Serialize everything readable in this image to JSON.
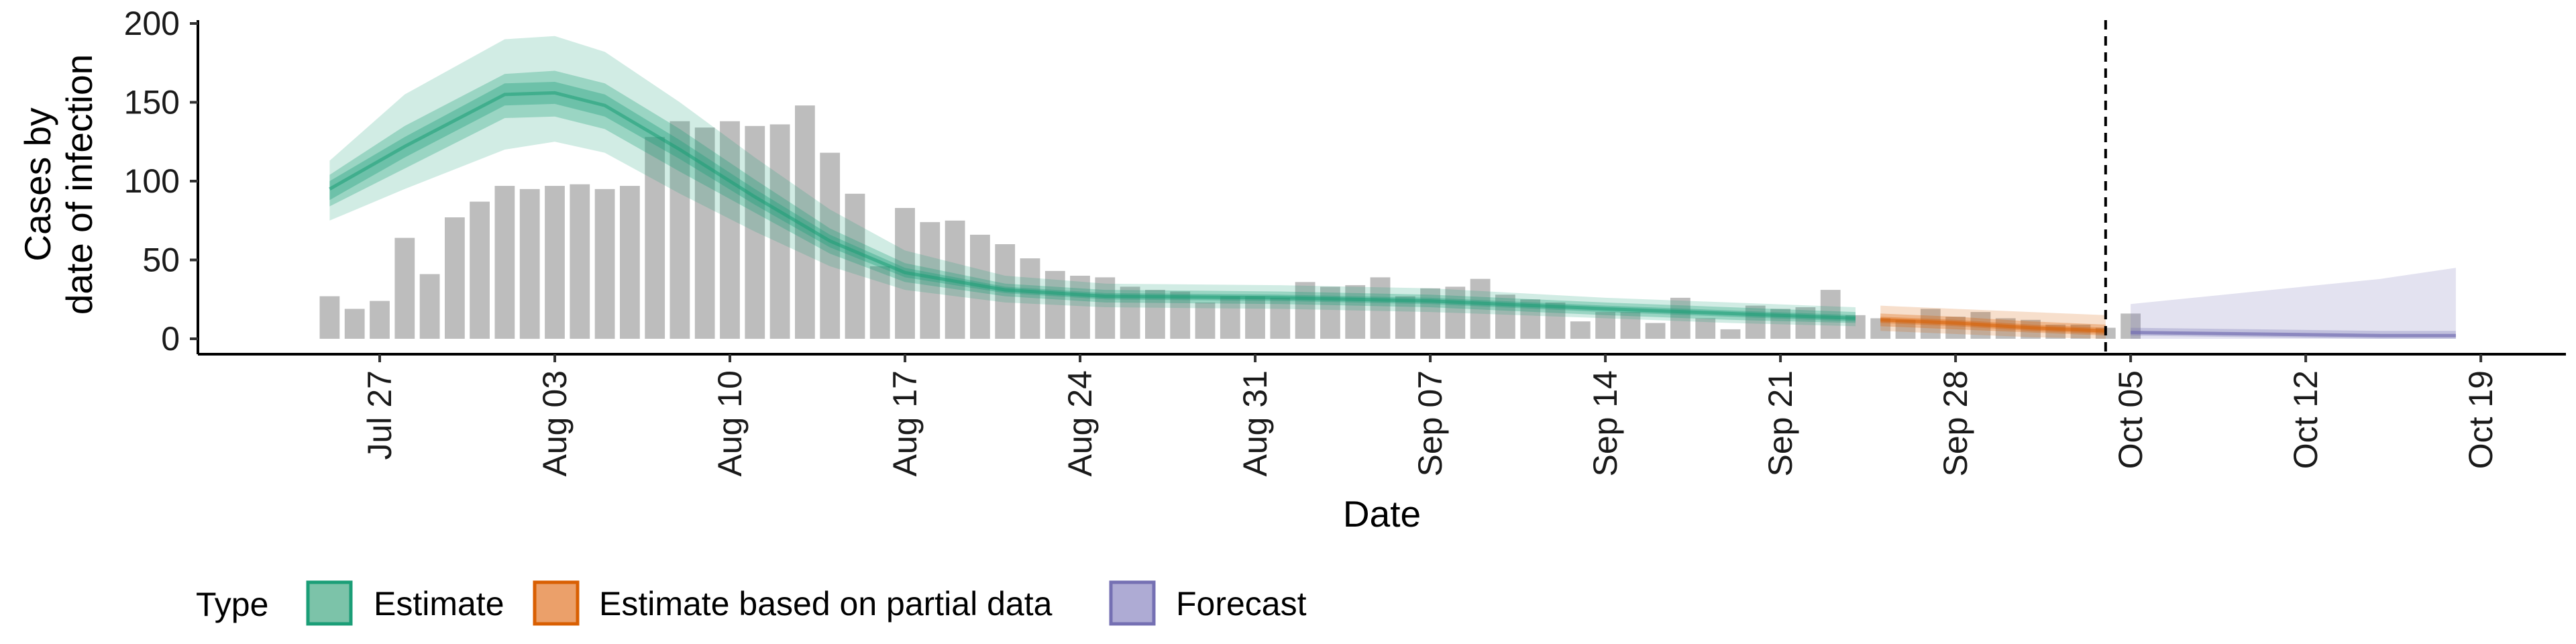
{
  "chart_data": {
    "type": "bar",
    "xlabel": "Date",
    "ylabel_lines": [
      "Cases by",
      "date of infection"
    ],
    "ylim": [
      0,
      200
    ],
    "y_ticks": [
      0,
      50,
      100,
      150,
      200
    ],
    "x_range": [
      "2020-07-20",
      "2020-10-22"
    ],
    "x_ticks": [
      {
        "date": "2020-07-27",
        "label": "Jul 27"
      },
      {
        "date": "2020-08-03",
        "label": "Aug 03"
      },
      {
        "date": "2020-08-10",
        "label": "Aug 10"
      },
      {
        "date": "2020-08-17",
        "label": "Aug 17"
      },
      {
        "date": "2020-08-24",
        "label": "Aug 24"
      },
      {
        "date": "2020-08-31",
        "label": "Aug 31"
      },
      {
        "date": "2020-09-07",
        "label": "Sep 07"
      },
      {
        "date": "2020-09-14",
        "label": "Sep 14"
      },
      {
        "date": "2020-09-21",
        "label": "Sep 21"
      },
      {
        "date": "2020-09-28",
        "label": "Sep 28"
      },
      {
        "date": "2020-10-05",
        "label": "Oct 05"
      },
      {
        "date": "2020-10-12",
        "label": "Oct 12"
      },
      {
        "date": "2020-10-19",
        "label": "Oct 19"
      }
    ],
    "vline_date": "2020-10-04",
    "bars": {
      "start_date": "2020-07-25",
      "color": "#bdbdbd",
      "values": [
        27,
        19,
        24,
        64,
        41,
        77,
        87,
        97,
        95,
        97,
        98,
        95,
        97,
        128,
        138,
        134,
        138,
        135,
        136,
        148,
        118,
        92,
        46,
        83,
        74,
        75,
        66,
        60,
        51,
        43,
        40,
        39,
        33,
        31,
        30,
        23,
        27,
        27,
        26,
        36,
        33,
        34,
        39,
        27,
        32,
        33,
        38,
        28,
        25,
        23,
        11,
        17,
        17,
        10,
        26,
        13,
        6,
        21,
        19,
        20,
        31,
        15,
        13,
        12,
        19,
        14,
        17,
        13,
        12,
        9,
        9,
        7,
        16
      ]
    },
    "series": [
      {
        "name": "Estimate",
        "color": "#1b9e77",
        "points": [
          {
            "date": "2020-07-25",
            "median": 95,
            "lo20": 88,
            "hi20": 100,
            "lo50": 84,
            "hi50": 104,
            "lo90": 75,
            "hi90": 113
          },
          {
            "date": "2020-07-28",
            "median": 122,
            "lo20": 115,
            "hi20": 128,
            "lo50": 108,
            "hi50": 135,
            "lo90": 95,
            "hi90": 155
          },
          {
            "date": "2020-08-01",
            "median": 155,
            "lo20": 148,
            "hi20": 162,
            "lo50": 140,
            "hi50": 168,
            "lo90": 120,
            "hi90": 190
          },
          {
            "date": "2020-08-03",
            "median": 156,
            "lo20": 149,
            "hi20": 163,
            "lo50": 141,
            "hi50": 170,
            "lo90": 125,
            "hi90": 192
          },
          {
            "date": "2020-08-05",
            "median": 148,
            "lo20": 141,
            "hi20": 155,
            "lo50": 133,
            "hi50": 162,
            "lo90": 118,
            "hi90": 182
          },
          {
            "date": "2020-08-08",
            "median": 120,
            "lo20": 114,
            "hi20": 126,
            "lo50": 106,
            "hi50": 133,
            "lo90": 92,
            "hi90": 150
          },
          {
            "date": "2020-08-11",
            "median": 90,
            "lo20": 85,
            "hi20": 95,
            "lo50": 80,
            "hi50": 101,
            "lo90": 68,
            "hi90": 115
          },
          {
            "date": "2020-08-14",
            "median": 62,
            "lo20": 58,
            "hi20": 66,
            "lo50": 54,
            "hi50": 70,
            "lo90": 46,
            "hi90": 82
          },
          {
            "date": "2020-08-17",
            "median": 42,
            "lo20": 39,
            "hi20": 45,
            "lo50": 36,
            "hi50": 48,
            "lo90": 31,
            "hi90": 56
          },
          {
            "date": "2020-08-21",
            "median": 31,
            "lo20": 29,
            "hi20": 33,
            "lo50": 27,
            "hi50": 35,
            "lo90": 23,
            "hi90": 40
          },
          {
            "date": "2020-08-25",
            "median": 27,
            "lo20": 25,
            "hi20": 29,
            "lo50": 23,
            "hi50": 31,
            "lo90": 20,
            "hi90": 35
          },
          {
            "date": "2020-09-01",
            "median": 26,
            "lo20": 24,
            "hi20": 28,
            "lo50": 22,
            "hi50": 30,
            "lo90": 19,
            "hi90": 34
          },
          {
            "date": "2020-09-07",
            "median": 24,
            "lo20": 22,
            "hi20": 26,
            "lo50": 20,
            "hi50": 28,
            "lo90": 17,
            "hi90": 32
          },
          {
            "date": "2020-09-14",
            "median": 19,
            "lo20": 17,
            "hi20": 21,
            "lo50": 15,
            "hi50": 23,
            "lo90": 13,
            "hi90": 26
          },
          {
            "date": "2020-09-19",
            "median": 16,
            "lo20": 14,
            "hi20": 18,
            "lo50": 12,
            "hi50": 20,
            "lo90": 10,
            "hi90": 23
          },
          {
            "date": "2020-09-24",
            "median": 13,
            "lo20": 11,
            "hi20": 15,
            "lo50": 10,
            "hi50": 17,
            "lo90": 8,
            "hi90": 20
          }
        ]
      },
      {
        "name": "Estimate based on partial data",
        "color": "#d95f02",
        "points": [
          {
            "date": "2020-09-25",
            "median": 12,
            "lo20": 10,
            "hi20": 14,
            "lo50": 8,
            "hi50": 16,
            "lo90": 5,
            "hi90": 21
          },
          {
            "date": "2020-09-28",
            "median": 10,
            "lo20": 8,
            "hi20": 12,
            "lo50": 6,
            "hi50": 14,
            "lo90": 3,
            "hi90": 19
          },
          {
            "date": "2020-10-01",
            "median": 7,
            "lo20": 5,
            "hi20": 9,
            "lo50": 4,
            "hi50": 11,
            "lo90": 1,
            "hi90": 17
          },
          {
            "date": "2020-10-04",
            "median": 5,
            "lo20": 3,
            "hi20": 7,
            "lo50": 2,
            "hi50": 9,
            "lo90": 0,
            "hi90": 15
          }
        ]
      },
      {
        "name": "Forecast",
        "color": "#7570b3",
        "points": [
          {
            "date": "2020-10-05",
            "median": 4,
            "lo20": 3,
            "hi20": 5,
            "lo50": 2,
            "hi50": 7,
            "lo90": 0,
            "hi90": 22
          },
          {
            "date": "2020-10-10",
            "median": 3,
            "lo20": 2,
            "hi20": 4,
            "lo50": 1,
            "hi50": 6,
            "lo90": 0,
            "hi90": 30
          },
          {
            "date": "2020-10-15",
            "median": 2,
            "lo20": 1,
            "hi20": 3,
            "lo50": 0,
            "hi50": 5,
            "lo90": 0,
            "hi90": 38
          },
          {
            "date": "2020-10-18",
            "median": 2,
            "lo20": 1,
            "hi20": 3,
            "lo50": 0,
            "hi50": 5,
            "lo90": 0,
            "hi90": 45
          }
        ]
      }
    ],
    "legend": {
      "title": "Type",
      "position": "bottom",
      "items": [
        {
          "label": "Estimate",
          "fill": "#7cc3a9",
          "stroke": "#1b9e77"
        },
        {
          "label": "Estimate based on partial data",
          "fill": "#eba06a",
          "stroke": "#d95f02"
        },
        {
          "label": "Forecast",
          "fill": "#aeabd4",
          "stroke": "#7570b3"
        }
      ]
    }
  }
}
